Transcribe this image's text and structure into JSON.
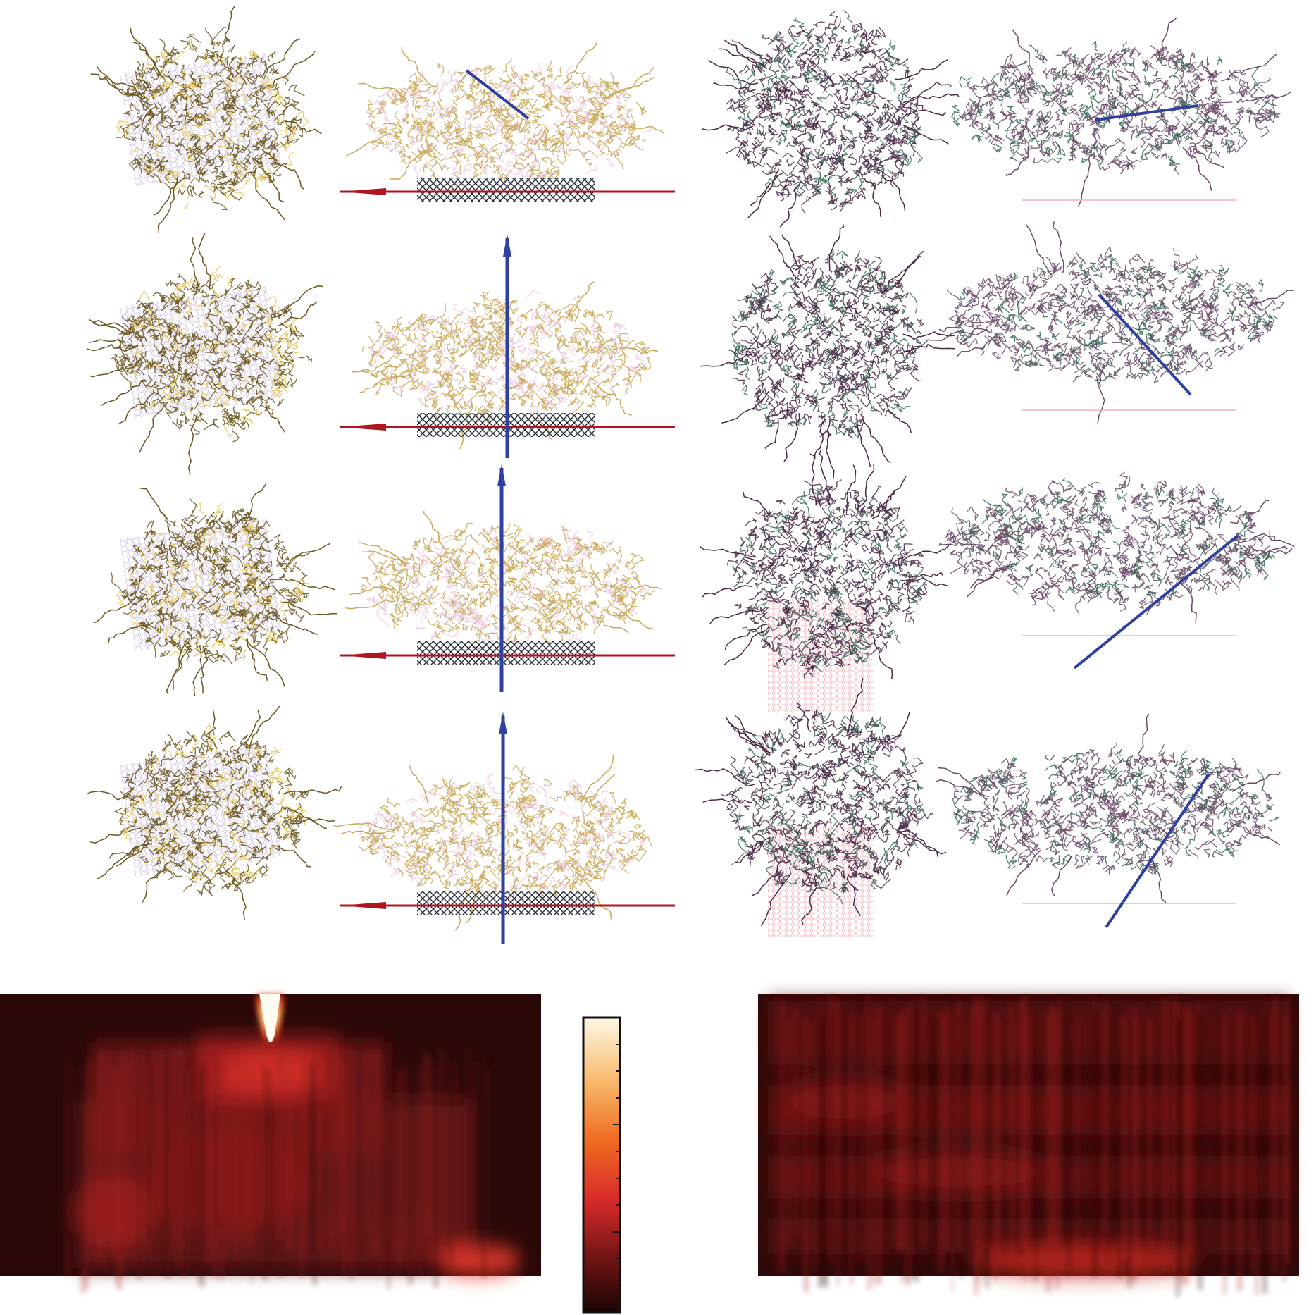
{
  "figure": {
    "snapshot_rows": 4,
    "snapshot_columns": 4,
    "left_system_colors": {
      "chain": "#6b5620",
      "highlight": "#e8c860",
      "substrate": "#c8b8d8"
    },
    "right_system_colors": {
      "chain": "#4a2a48",
      "accent": "#3a6a58",
      "substrate": "#f4b0b8"
    },
    "axis_colors": {
      "red_axis": "#b0141e",
      "blue_axis": "#3040a0"
    },
    "heatmap_colors": [
      "#2a0808",
      "#5a1212",
      "#9c2020",
      "#d83028",
      "#f07820",
      "#f8c070",
      "#fbf4d8"
    ],
    "colorbar_ticks_major": 3,
    "colorbar_ticks_minor": 11
  }
}
